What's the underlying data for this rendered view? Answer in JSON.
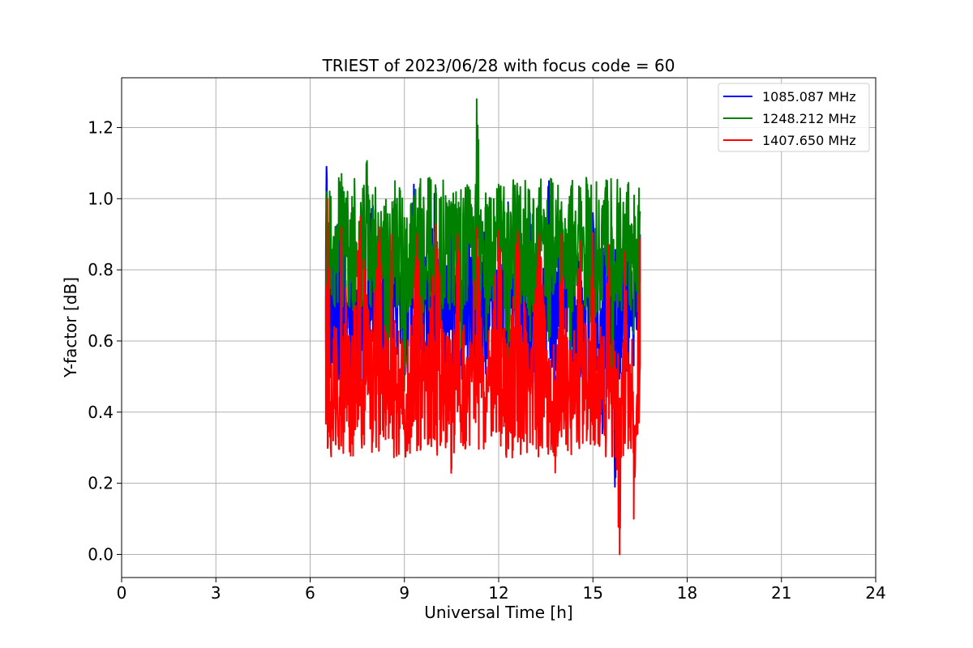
{
  "chart_data": {
    "type": "line",
    "title": "TRIEST of 2023/06/28 with focus code = 60",
    "xlabel": "Universal Time [h]",
    "ylabel": "Y-factor [dB]",
    "xlim": [
      0,
      24
    ],
    "ylim": [
      -0.065,
      1.34
    ],
    "xticks": [
      0,
      3,
      6,
      9,
      12,
      15,
      18,
      21,
      24
    ],
    "xtick_labels": [
      "0",
      "3",
      "6",
      "9",
      "12",
      "15",
      "18",
      "21",
      "24"
    ],
    "yticks": [
      0.0,
      0.2,
      0.4,
      0.6,
      0.8,
      1.0,
      1.2
    ],
    "ytick_labels": [
      "0.0",
      "0.2",
      "0.4",
      "0.6",
      "0.8",
      "1.0",
      "1.2"
    ],
    "grid": true,
    "legend_position": "top-right",
    "x_range": [
      6.5,
      16.5
    ],
    "series": [
      {
        "name": "1085.087 MHz",
        "color": "#0000ff",
        "x": [
          6.5,
          6.52,
          6.6,
          7.0,
          7.5,
          8.0,
          8.4,
          8.7,
          9.0,
          9.3,
          9.6,
          10.0,
          10.3,
          10.5,
          10.8,
          11.0,
          11.3,
          11.6,
          12.0,
          12.3,
          12.6,
          13.0,
          13.3,
          13.6,
          14.0,
          14.3,
          14.6,
          15.0,
          15.3,
          15.6,
          15.7,
          16.0,
          16.3,
          16.5
        ],
        "values": [
          0.85,
          1.09,
          0.78,
          1.02,
          0.62,
          0.98,
          0.45,
          1.0,
          0.5,
          1.04,
          0.62,
          1.03,
          0.52,
          0.96,
          0.6,
          1.0,
          0.55,
          0.98,
          0.52,
          0.97,
          0.58,
          0.96,
          0.6,
          1.05,
          0.55,
          0.98,
          0.5,
          0.96,
          0.34,
          0.92,
          0.19,
          0.9,
          0.6,
          0.9
        ],
        "min": 0.19,
        "max": 1.09
      },
      {
        "name": "1248.212 MHz",
        "color": "#008000",
        "x": [
          6.5,
          6.52,
          6.6,
          7.0,
          7.4,
          7.8,
          8.2,
          8.4,
          8.7,
          9.0,
          9.2,
          9.5,
          9.8,
          10.1,
          10.5,
          10.8,
          11.0,
          11.25,
          11.3,
          11.6,
          12.0,
          12.3,
          12.6,
          13.0,
          13.3,
          13.6,
          14.0,
          14.3,
          14.6,
          15.0,
          15.3,
          15.6,
          16.0,
          16.3,
          16.5
        ],
        "values": [
          0.62,
          1.02,
          0.72,
          1.07,
          0.7,
          1.1,
          0.55,
          0.4,
          1.05,
          0.46,
          0.98,
          0.62,
          1.0,
          0.6,
          0.98,
          0.58,
          1.03,
          0.7,
          1.28,
          0.6,
          1.04,
          0.55,
          1.02,
          0.6,
          1.03,
          0.6,
          0.98,
          0.55,
          1.02,
          0.52,
          0.98,
          0.5,
          0.95,
          0.62,
          0.96
        ],
        "min": 0.4,
        "max": 1.28
      },
      {
        "name": "1407.650 MHz",
        "color": "#ff0000",
        "x": [
          6.5,
          6.55,
          6.7,
          7.0,
          7.3,
          7.6,
          7.9,
          8.2,
          8.4,
          8.6,
          8.8,
          9.1,
          9.4,
          9.7,
          10.0,
          10.3,
          10.5,
          10.7,
          11.0,
          11.3,
          11.6,
          12.0,
          12.3,
          12.6,
          13.0,
          13.3,
          13.6,
          13.8,
          14.0,
          14.3,
          14.6,
          14.8,
          15.0,
          15.2,
          15.5,
          15.7,
          15.85,
          16.0,
          16.2,
          16.3,
          16.5
        ],
        "values": [
          0.72,
          1.0,
          0.43,
          0.92,
          0.5,
          0.95,
          0.6,
          0.92,
          0.36,
          0.9,
          0.4,
          0.31,
          0.9,
          0.46,
          0.93,
          0.5,
          0.24,
          0.9,
          0.4,
          0.92,
          0.4,
          0.91,
          0.52,
          0.9,
          0.5,
          0.9,
          0.48,
          0.23,
          0.9,
          0.38,
          0.88,
          0.32,
          0.88,
          0.31,
          0.87,
          0.35,
          0.0,
          0.85,
          0.38,
          0.1,
          0.89
        ],
        "min": 0.0,
        "max": 1.0
      }
    ]
  }
}
